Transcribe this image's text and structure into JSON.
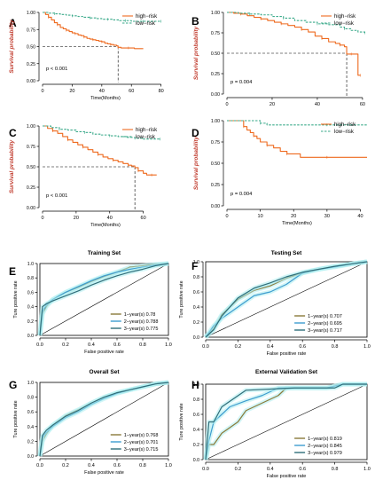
{
  "chart_data": [
    {
      "panel": "A",
      "type": "line",
      "ylabel": "Survival probability",
      "xlabel": "Time(Months)",
      "xticks": [
        "0",
        "20",
        "40",
        "60",
        "80"
      ],
      "xlim": [
        0,
        85
      ],
      "yticks": [
        "0.00",
        "0.25",
        "0.50",
        "0.75",
        "1.00"
      ],
      "ylim": [
        0,
        1
      ],
      "pvalue": "p < 0.001",
      "legend": [
        "high−risk",
        "low−risk"
      ],
      "legend_position": "top-right",
      "median": [
        51,
        0.5
      ],
      "series": [
        {
          "name": "high−risk",
          "color": "#ee6a1f",
          "style": "solid",
          "x": [
            0,
            2,
            4,
            6,
            8,
            10,
            12,
            14,
            16,
            18,
            20,
            22,
            24,
            26,
            28,
            30,
            32,
            34,
            36,
            38,
            40,
            42,
            44,
            46,
            48,
            50,
            51,
            53,
            55,
            58,
            62,
            68
          ],
          "y": [
            1,
            0.97,
            0.93,
            0.89,
            0.85,
            0.82,
            0.78,
            0.76,
            0.74,
            0.72,
            0.7,
            0.69,
            0.67,
            0.66,
            0.64,
            0.62,
            0.61,
            0.6,
            0.59,
            0.58,
            0.57,
            0.55,
            0.54,
            0.53,
            0.52,
            0.51,
            0.49,
            0.48,
            0.48,
            0.48,
            0.47,
            0.47
          ]
        },
        {
          "name": "low−risk",
          "color": "#3aaa8a",
          "style": "dashed",
          "x": [
            0,
            4,
            8,
            12,
            16,
            20,
            24,
            28,
            32,
            36,
            40,
            44,
            48,
            52,
            56,
            60,
            64,
            68,
            72,
            76,
            80
          ],
          "y": [
            1,
            0.99,
            0.98,
            0.97,
            0.96,
            0.95,
            0.94,
            0.93,
            0.92,
            0.91,
            0.9,
            0.9,
            0.89,
            0.88,
            0.88,
            0.87,
            0.87,
            0.87,
            0.87,
            0.87,
            0.87
          ]
        }
      ]
    },
    {
      "panel": "B",
      "type": "line",
      "ylabel": "Survival probability",
      "xlabel": "",
      "xticks": [
        "0",
        "20",
        "40",
        "60"
      ],
      "xlim": [
        0,
        62
      ],
      "yticks": [
        "0.00",
        "0.25",
        "0.50",
        "0.75",
        "1.00"
      ],
      "ylim": [
        0,
        1
      ],
      "pvalue": "p = 0.004",
      "legend": [
        "high−risk",
        "low−risk"
      ],
      "legend_position": "top-right",
      "median": [
        53,
        0.5
      ],
      "series": [
        {
          "name": "high−risk",
          "color": "#ee6a1f",
          "style": "solid",
          "x": [
            0,
            3,
            6,
            9,
            12,
            15,
            18,
            21,
            24,
            27,
            30,
            33,
            36,
            39,
            42,
            45,
            48,
            50,
            52,
            53,
            55,
            57,
            58,
            59
          ],
          "y": [
            1,
            0.99,
            0.98,
            0.96,
            0.94,
            0.92,
            0.9,
            0.88,
            0.86,
            0.84,
            0.82,
            0.79,
            0.76,
            0.71,
            0.68,
            0.64,
            0.62,
            0.6,
            0.58,
            0.49,
            0.49,
            0.49,
            0.23,
            0.23
          ]
        },
        {
          "name": "low−risk",
          "color": "#3aaa8a",
          "style": "dashed",
          "x": [
            0,
            5,
            10,
            15,
            20,
            25,
            30,
            35,
            40,
            45,
            50,
            52,
            55,
            58,
            61
          ],
          "y": [
            1,
            0.99,
            0.98,
            0.97,
            0.95,
            0.93,
            0.9,
            0.88,
            0.86,
            0.85,
            0.82,
            0.8,
            0.78,
            0.76,
            0.75
          ]
        }
      ]
    },
    {
      "panel": "C",
      "type": "line",
      "ylabel": "Survival probability",
      "xlabel": "Time(Months)",
      "xticks": [
        "0",
        "20",
        "40",
        "60"
      ],
      "xlim": [
        0,
        75
      ],
      "yticks": [
        "0.00",
        "0.25",
        "0.50",
        "0.75",
        "1.00"
      ],
      "ylim": [
        0,
        1
      ],
      "pvalue": "p < 0.001",
      "legend": [
        "high−risk",
        "low−risk"
      ],
      "legend_position": "top-right",
      "median": [
        55,
        0.5
      ],
      "series": [
        {
          "name": "high−risk",
          "color": "#ee6a1f",
          "style": "solid",
          "x": [
            0,
            3,
            6,
            9,
            12,
            15,
            18,
            21,
            24,
            27,
            30,
            33,
            36,
            39,
            42,
            45,
            48,
            51,
            53,
            55,
            57,
            60,
            62,
            65,
            68
          ],
          "y": [
            1,
            0.97,
            0.94,
            0.91,
            0.87,
            0.83,
            0.8,
            0.77,
            0.74,
            0.71,
            0.68,
            0.65,
            0.62,
            0.6,
            0.58,
            0.56,
            0.54,
            0.52,
            0.51,
            0.49,
            0.45,
            0.42,
            0.4,
            0.4,
            0.4
          ]
        },
        {
          "name": "low−risk",
          "color": "#3aaa8a",
          "style": "dashed",
          "x": [
            0,
            5,
            10,
            15,
            20,
            25,
            30,
            35,
            40,
            45,
            50,
            55,
            60,
            65,
            70
          ],
          "y": [
            1,
            0.98,
            0.96,
            0.95,
            0.93,
            0.92,
            0.9,
            0.89,
            0.88,
            0.87,
            0.86,
            0.85,
            0.84,
            0.84,
            0.84
          ]
        }
      ]
    },
    {
      "panel": "D",
      "type": "line",
      "ylabel": "Survival probability",
      "xlabel": "Time(Months)",
      "xticks": [
        "0",
        "10",
        "20",
        "30",
        "40"
      ],
      "xlim": [
        0,
        42
      ],
      "yticks": [
        "0.00",
        "0.25",
        "0.50",
        "0.75",
        "1.00"
      ],
      "ylim": [
        0,
        1
      ],
      "pvalue": "p = 0.004",
      "legend": [
        "high−risk",
        "low−risk"
      ],
      "legend_position": "top-right",
      "series": [
        {
          "name": "high−risk",
          "color": "#ee6a1f",
          "style": "solid",
          "x": [
            0,
            4,
            5,
            6,
            7,
            8,
            9,
            10,
            12,
            14,
            16,
            18,
            20,
            22,
            30,
            42
          ],
          "y": [
            1,
            1,
            0.93,
            0.89,
            0.86,
            0.82,
            0.79,
            0.75,
            0.71,
            0.68,
            0.64,
            0.61,
            0.61,
            0.57,
            0.57,
            0.57
          ]
        },
        {
          "name": "low−risk",
          "color": "#3aaa8a",
          "style": "dashed",
          "x": [
            0,
            8,
            10,
            12,
            20,
            30,
            42
          ],
          "y": [
            1,
            1,
            0.97,
            0.95,
            0.95,
            0.95,
            0.95
          ]
        }
      ]
    },
    {
      "panel": "E",
      "type": "line",
      "title": "Training Set",
      "xlabel": "False positive rate",
      "ylabel": "Ture positive rate",
      "xticks": [
        "0.0",
        "0.2",
        "0.4",
        "0.6",
        "0.8",
        "1.0"
      ],
      "yticks": [
        "0.0",
        "0.2",
        "0.4",
        "0.6",
        "0.8",
        "1.0"
      ],
      "xlim": [
        0,
        1
      ],
      "ylim": [
        0,
        1
      ],
      "legend_position": "bottom-right",
      "series": [
        {
          "name": "1−year(s) 0.78",
          "color": "#8a7a3a",
          "x": [
            0,
            0.02,
            0.05,
            0.1,
            0.2,
            0.3,
            0.4,
            0.5,
            0.6,
            0.7,
            0.8,
            0.9,
            1
          ],
          "y": [
            0,
            0.3,
            0.4,
            0.5,
            0.6,
            0.67,
            0.75,
            0.82,
            0.88,
            0.95,
            0.97,
            0.99,
            1
          ]
        },
        {
          "name": "2−year(s) 0.788",
          "color": "#3d9ccf",
          "x": [
            0,
            0.02,
            0.05,
            0.1,
            0.2,
            0.3,
            0.4,
            0.5,
            0.6,
            0.7,
            0.8,
            0.9,
            1
          ],
          "y": [
            0,
            0.33,
            0.42,
            0.5,
            0.6,
            0.68,
            0.76,
            0.83,
            0.88,
            0.92,
            0.95,
            0.98,
            1
          ]
        },
        {
          "name": "3−year(s) 0.775",
          "color": "#2f6e7a",
          "x": [
            0,
            0.02,
            0.05,
            0.1,
            0.2,
            0.3,
            0.4,
            0.5,
            0.6,
            0.7,
            0.8,
            0.9,
            1
          ],
          "y": [
            0,
            0.4,
            0.44,
            0.48,
            0.55,
            0.62,
            0.7,
            0.77,
            0.83,
            0.88,
            0.92,
            0.97,
            1
          ]
        }
      ]
    },
    {
      "panel": "F",
      "type": "line",
      "title": "Testing Set",
      "xlabel": "False positive rate",
      "ylabel": "Ture positive rate",
      "xticks": [
        "0.0",
        "0.2",
        "0.4",
        "0.6",
        "0.8",
        "1.0"
      ],
      "yticks": [
        "0.0",
        "0.2",
        "0.4",
        "0.6",
        "0.8",
        "1.0"
      ],
      "xlim": [
        0,
        1
      ],
      "ylim": [
        0,
        1
      ],
      "legend_position": "bottom-right",
      "series": [
        {
          "name": "1−year(s) 0.707",
          "color": "#8a7a3a",
          "x": [
            0,
            0.05,
            0.1,
            0.2,
            0.3,
            0.4,
            0.5,
            0.6,
            0.7,
            0.8,
            0.9,
            1
          ],
          "y": [
            0,
            0.12,
            0.3,
            0.5,
            0.62,
            0.68,
            0.78,
            0.85,
            0.9,
            0.94,
            0.97,
            1
          ]
        },
        {
          "name": "2−year(s) 0.695",
          "color": "#3d9ccf",
          "x": [
            0,
            0.05,
            0.1,
            0.2,
            0.3,
            0.4,
            0.5,
            0.6,
            0.7,
            0.8,
            0.9,
            1
          ],
          "y": [
            0,
            0.15,
            0.25,
            0.4,
            0.55,
            0.6,
            0.7,
            0.85,
            0.9,
            0.93,
            0.97,
            1
          ]
        },
        {
          "name": "3−year(s) 0.717",
          "color": "#2f6e7a",
          "x": [
            0,
            0.05,
            0.1,
            0.2,
            0.3,
            0.4,
            0.5,
            0.6,
            0.7,
            0.8,
            0.9,
            1
          ],
          "y": [
            0,
            0.1,
            0.28,
            0.52,
            0.65,
            0.72,
            0.8,
            0.86,
            0.9,
            0.94,
            0.97,
            1
          ]
        }
      ]
    },
    {
      "panel": "G",
      "type": "line",
      "title": "Overall Set",
      "xlabel": "False positive rate",
      "ylabel": "Ture positive rate",
      "xticks": [
        "0.0",
        "0.2",
        "0.4",
        "0.6",
        "0.8",
        "1.0"
      ],
      "yticks": [
        "0.0",
        "0.2",
        "0.4",
        "0.6",
        "0.8",
        "1.0"
      ],
      "xlim": [
        0,
        1
      ],
      "ylim": [
        0,
        1
      ],
      "legend_position": "bottom-right",
      "series": [
        {
          "name": "1−year(s) 0.768",
          "color": "#8a7a3a",
          "x": [
            0,
            0.02,
            0.05,
            0.1,
            0.2,
            0.3,
            0.4,
            0.5,
            0.6,
            0.7,
            0.8,
            0.9,
            1
          ],
          "y": [
            0,
            0.2,
            0.3,
            0.42,
            0.55,
            0.63,
            0.72,
            0.8,
            0.86,
            0.9,
            0.94,
            0.98,
            1
          ]
        },
        {
          "name": "2−year(s) 0.701",
          "color": "#3d9ccf",
          "x": [
            0,
            0.02,
            0.05,
            0.1,
            0.2,
            0.3,
            0.4,
            0.5,
            0.6,
            0.7,
            0.8,
            0.9,
            1
          ],
          "y": [
            0,
            0.25,
            0.32,
            0.4,
            0.52,
            0.6,
            0.7,
            0.78,
            0.85,
            0.9,
            0.94,
            0.98,
            1
          ]
        },
        {
          "name": "3−year(s) 0.715",
          "color": "#2f6e7a",
          "x": [
            0,
            0.02,
            0.05,
            0.1,
            0.2,
            0.3,
            0.4,
            0.5,
            0.6,
            0.7,
            0.8,
            0.9,
            1
          ],
          "y": [
            0,
            0.28,
            0.35,
            0.42,
            0.54,
            0.62,
            0.72,
            0.8,
            0.86,
            0.9,
            0.94,
            0.98,
            1
          ]
        }
      ]
    },
    {
      "panel": "H",
      "type": "line",
      "title": "External Validation Set",
      "xlabel": "False positive rate",
      "ylabel": "Ture positive rate",
      "xticks": [
        "0.0",
        "0.2",
        "0.4",
        "0.6",
        "0.8",
        "1.0"
      ],
      "yticks": [
        "0.0",
        "0.2",
        "0.4",
        "0.6",
        "0.8",
        "1.0"
      ],
      "xlim": [
        0,
        1
      ],
      "ylim": [
        0,
        1
      ],
      "legend_position": "bottom-right",
      "series": [
        {
          "name": "1−year(s) 0.819",
          "color": "#8a7a3a",
          "x": [
            0,
            0.02,
            0.05,
            0.1,
            0.2,
            0.25,
            0.35,
            0.45,
            0.5,
            0.55,
            0.75,
            0.85,
            1
          ],
          "y": [
            0,
            0.2,
            0.2,
            0.35,
            0.5,
            0.65,
            0.75,
            0.85,
            0.95,
            0.95,
            0.95,
            1,
            1
          ]
        },
        {
          "name": "2−year(s) 0.845",
          "color": "#3d9ccf",
          "x": [
            0,
            0.02,
            0.05,
            0.1,
            0.15,
            0.25,
            0.35,
            0.45,
            0.5,
            0.55,
            0.75,
            0.85,
            1
          ],
          "y": [
            0,
            0.25,
            0.5,
            0.6,
            0.7,
            0.78,
            0.85,
            0.95,
            0.95,
            0.95,
            0.95,
            1,
            1
          ]
        },
        {
          "name": "3−year(s) 0.979",
          "color": "#2f6e7a",
          "x": [
            0,
            0.02,
            0.05,
            0.1,
            0.25,
            0.55,
            0.8,
            0.85,
            1
          ],
          "y": [
            0,
            0.5,
            0.5,
            0.7,
            0.92,
            0.95,
            0.95,
            1,
            1
          ]
        }
      ]
    }
  ]
}
